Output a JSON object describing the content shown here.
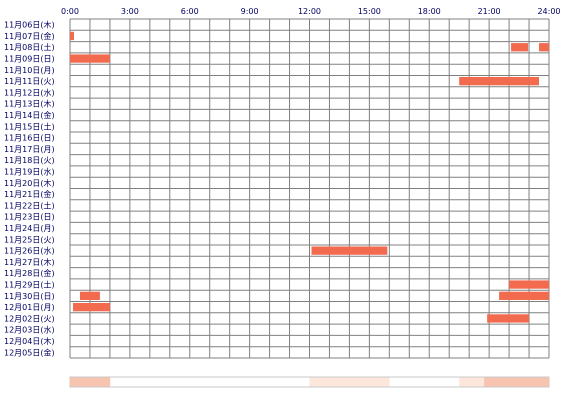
{
  "chart_data": {
    "type": "heatmap",
    "title": "",
    "xlabel": "",
    "ylabel": "",
    "x_range_hours": [
      0,
      24
    ],
    "x_tick_labels": [
      "0:00",
      "3:00",
      "6:00",
      "9:00",
      "12:00",
      "15:00",
      "18:00",
      "21:00",
      "24:00"
    ],
    "y_labels": [
      "11月06日(木)",
      "11月07日(金)",
      "11月08日(土)",
      "11月09日(日)",
      "11月10日(月)",
      "11月11日(火)",
      "11月12日(水)",
      "11月13日(木)",
      "11月14日(金)",
      "11月15日(土)",
      "11月16日(日)",
      "11月17日(月)",
      "11月18日(火)",
      "11月19日(水)",
      "11月20日(木)",
      "11月21日(金)",
      "11月22日(土)",
      "11月23日(日)",
      "11月24日(月)",
      "11月25日(火)",
      "11月26日(水)",
      "11月27日(木)",
      "11月28日(金)",
      "11月29日(土)",
      "11月30日(日)",
      "12月01日(月)",
      "12月02日(火)",
      "12月03日(水)",
      "12月04日(木)",
      "12月05日(金)"
    ],
    "grid": true,
    "colors": {
      "bar": "#f26b4f",
      "grid": "#808080",
      "summary_light": "#fde6da",
      "summary_dark": "#f7c4b0"
    },
    "activity": [
      {
        "day": "11月07日(金)",
        "start": 0.0,
        "end": 0.2
      },
      {
        "day": "11月08日(土)",
        "start": 22.1,
        "end": 22.95
      },
      {
        "day": "11月08日(土)",
        "start": 23.5,
        "end": 24.0
      },
      {
        "day": "11月09日(日)",
        "start": 0.0,
        "end": 2.0
      },
      {
        "day": "11月11日(火)",
        "start": 19.5,
        "end": 23.5
      },
      {
        "day": "11月26日(水)",
        "start": 12.1,
        "end": 15.9
      },
      {
        "day": "11月29日(土)",
        "start": 22.0,
        "end": 24.0
      },
      {
        "day": "11月30日(日)",
        "start": 0.5,
        "end": 1.5
      },
      {
        "day": "11月30日(日)",
        "start": 21.5,
        "end": 24.0
      },
      {
        "day": "12月01日(月)",
        "start": 0.15,
        "end": 2.0
      },
      {
        "day": "12月02日(火)",
        "start": 20.9,
        "end": 23.0
      }
    ]
  }
}
